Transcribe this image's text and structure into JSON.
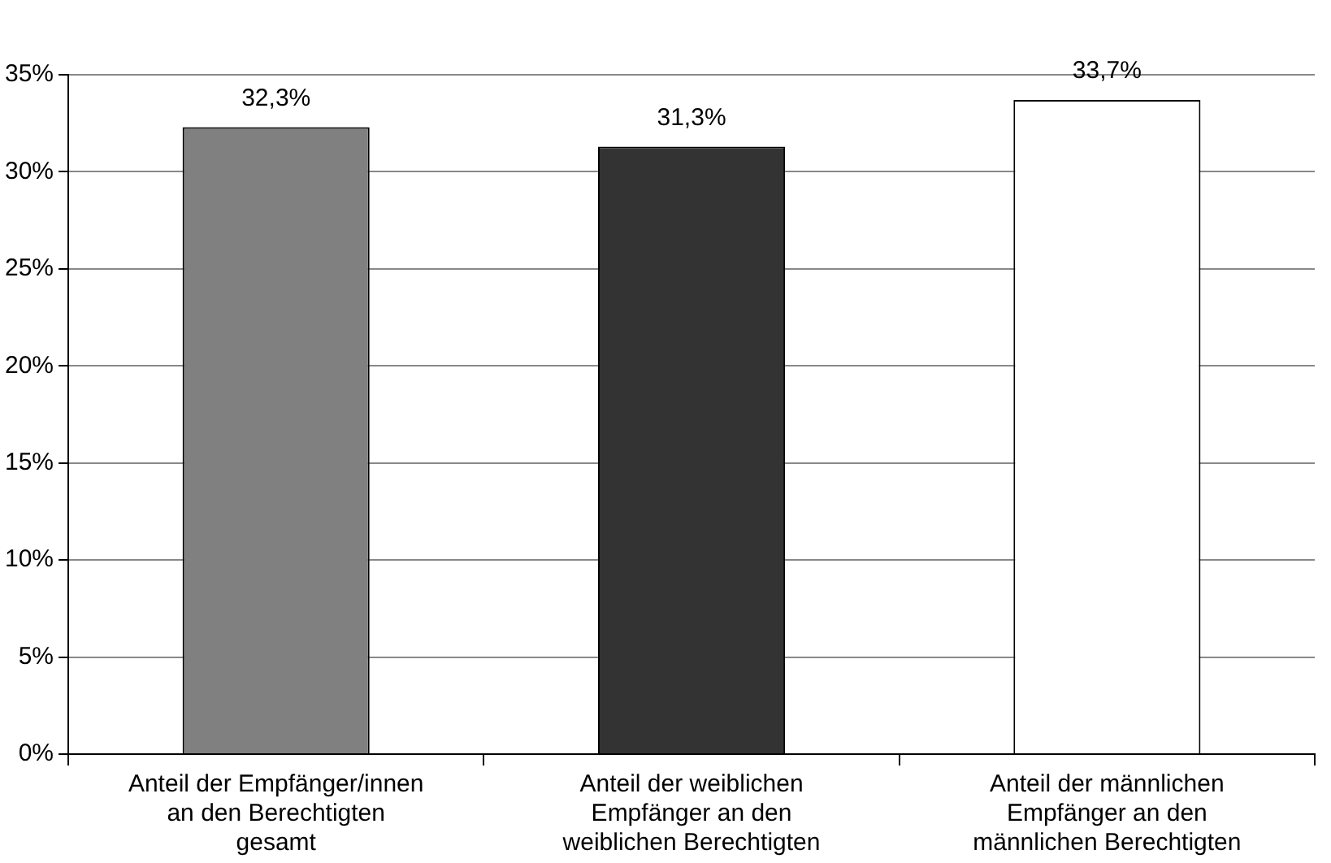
{
  "chart_data": {
    "type": "bar",
    "categories": [
      "Anteil der Empfänger/innen an den Berechtigten gesamt",
      "Anteil der weiblichen Empfänger an den weiblichen Berechtigten",
      "Anteil der männlichen Empfänger an den männlichen Berechtigten"
    ],
    "values": [
      32.3,
      31.3,
      33.7
    ],
    "colors": [
      "#808080",
      "#333333",
      "#ffffff"
    ],
    "value_labels": [
      "32,3%",
      "31,3%",
      "33,7%"
    ],
    "ylim": [
      0,
      35
    ],
    "yticks": [
      {
        "value": 0,
        "label": "0%"
      },
      {
        "value": 5,
        "label": "5%"
      },
      {
        "value": 10,
        "label": "10%"
      },
      {
        "value": 15,
        "label": "15%"
      },
      {
        "value": 20,
        "label": "20%"
      },
      {
        "value": 25,
        "label": "25%"
      },
      {
        "value": 30,
        "label": "30%"
      },
      {
        "value": 35,
        "label": "35%"
      }
    ],
    "grid": "y",
    "legend": false
  }
}
